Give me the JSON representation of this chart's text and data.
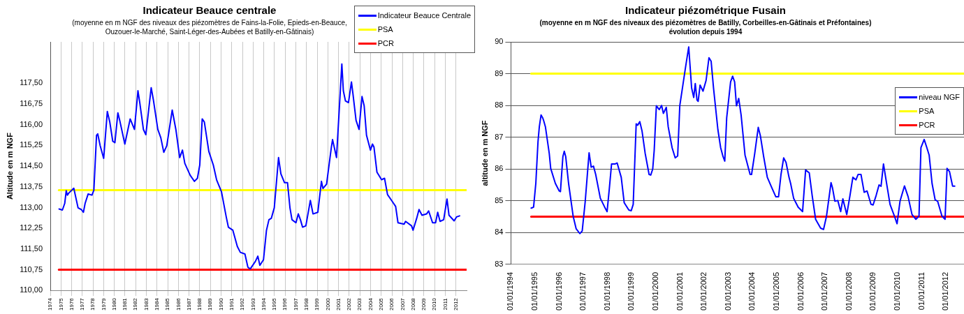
{
  "chart_data": [
    {
      "type": "line",
      "title": "Indicateur Beauce centrale",
      "subtitle": "(moyenne en m NGF des niveaux des piézomètres de Fains-la-Folie, Epieds-en-Beauce,\nOuzouer-le-Marché, Saint-Léger-des-Aubées et Batilly-en-Gâtinais)",
      "ylabel": "Altitude en m NGF",
      "xlim": [
        1974,
        2013
      ],
      "xticks": [
        1974,
        1975,
        1976,
        1977,
        1978,
        1979,
        1980,
        1981,
        1982,
        1983,
        1984,
        1985,
        1986,
        1987,
        1988,
        1989,
        1990,
        1991,
        1992,
        1993,
        1994,
        1995,
        1996,
        1997,
        1998,
        1999,
        2000,
        2001,
        2002,
        2003,
        2004,
        2005,
        2006,
        2007,
        2008,
        2009,
        2010,
        2011,
        2012
      ],
      "ylim": [
        110,
        119
      ],
      "yticks": [
        {
          "value": 110,
          "label": "110,00"
        },
        {
          "value": 110.75,
          "label": "110,75"
        },
        {
          "value": 111.5,
          "label": "111,50"
        },
        {
          "value": 112.25,
          "label": "112,25"
        },
        {
          "value": 113,
          "label": "113,00"
        },
        {
          "value": 113.75,
          "label": "113,75"
        },
        {
          "value": 114.5,
          "label": "114,50"
        },
        {
          "value": 115.25,
          "label": "115,25"
        },
        {
          "value": 116,
          "label": "116,00"
        },
        {
          "value": 116.75,
          "label": "116,75"
        },
        {
          "value": 117.5,
          "label": "117,50"
        }
      ],
      "grid": "x",
      "legend": "top right",
      "series": [
        {
          "name": "Indicateur Beauce Centrale",
          "type": "line",
          "color": "#0000ff",
          "x": [
            1974.82,
            1975.13,
            1975.35,
            1975.49,
            1975.6,
            1975.72,
            1976.2,
            1976.6,
            1976.9,
            1977.1,
            1977.26,
            1977.54,
            1977.9,
            1978.08,
            1978.33,
            1978.44,
            1978.67,
            1979.0,
            1979.34,
            1979.57,
            1979.85,
            1980.05,
            1980.33,
            1980.5,
            1980.98,
            1981.48,
            1981.88,
            1982.21,
            1982.38,
            1982.72,
            1982.95,
            1983.45,
            1983.65,
            1984.07,
            1984.35,
            1984.63,
            1984.91,
            1985.42,
            1985.76,
            1986.12,
            1986.38,
            1986.6,
            1987.1,
            1987.5,
            1987.78,
            1988.0,
            1988.23,
            1988.43,
            1988.85,
            1989.27,
            1989.58,
            1990.03,
            1990.48,
            1990.68,
            1991.1,
            1991.52,
            1991.8,
            1992.23,
            1992.51,
            1992.73,
            1993.21,
            1993.44,
            1993.63,
            1993.97,
            1994.25,
            1994.48,
            1994.7,
            1994.98,
            1995.38,
            1995.6,
            1995.94,
            1996.22,
            1996.45,
            1996.64,
            1997.01,
            1997.23,
            1997.43,
            1997.63,
            1997.94,
            1998.36,
            1998.61,
            1999.06,
            1999.4,
            1999.54,
            1999.88,
            2000.33,
            2000.44,
            2000.81,
            2001.31,
            2001.45,
            2001.65,
            2001.93,
            2002.21,
            2002.35,
            2002.64,
            2002.92,
            2003.2,
            2003.4,
            2003.62,
            2003.99,
            2004.18,
            2004.32,
            2004.6,
            2005.03,
            2005.31,
            2005.59,
            2006.07,
            2006.35,
            2006.57,
            2007.14,
            2007.28,
            2007.84,
            2007.98,
            2008.32,
            2008.54,
            2008.82,
            2009.25,
            2009.44,
            2009.81,
            2010.09,
            2010.29,
            2010.51,
            2010.85,
            2011.16,
            2011.35,
            2011.83,
            2012.05,
            2012.34
          ],
          "values": [
            112.95,
            112.91,
            113.15,
            113.61,
            113.45,
            113.52,
            113.7,
            112.99,
            112.93,
            112.83,
            113.15,
            113.49,
            113.45,
            113.63,
            115.62,
            115.67,
            115.24,
            114.78,
            116.48,
            116.1,
            115.4,
            115.35,
            116.43,
            116.16,
            115.3,
            116.21,
            115.83,
            117.23,
            116.8,
            115.83,
            115.64,
            117.34,
            116.91,
            115.83,
            115.53,
            115.0,
            115.24,
            116.53,
            115.83,
            114.81,
            115.08,
            114.6,
            114.17,
            113.95,
            114.06,
            114.54,
            116.21,
            116.1,
            115.03,
            114.54,
            114.0,
            113.58,
            112.66,
            112.29,
            112.18,
            111.59,
            111.38,
            111.32,
            110.84,
            110.78,
            111.05,
            111.24,
            110.91,
            111.11,
            112.18,
            112.56,
            112.61,
            112.99,
            114.81,
            114.22,
            113.9,
            113.9,
            112.99,
            112.56,
            112.45,
            112.77,
            112.56,
            112.29,
            112.34,
            113.26,
            112.77,
            112.83,
            113.95,
            113.69,
            113.85,
            115.19,
            115.46,
            114.81,
            118.2,
            117.23,
            116.86,
            116.8,
            117.55,
            117.12,
            116.16,
            115.83,
            117.02,
            116.69,
            115.62,
            115.08,
            115.3,
            115.19,
            114.28,
            114.01,
            114.06,
            113.47,
            113.2,
            113.04,
            112.45,
            112.4,
            112.5,
            112.34,
            112.18,
            112.61,
            112.93,
            112.72,
            112.77,
            112.88,
            112.45,
            112.45,
            112.83,
            112.5,
            112.56,
            113.31,
            112.72,
            112.52,
            112.66,
            112.7
          ]
        },
        {
          "name": "PSA",
          "type": "line",
          "color": "#ffff00",
          "x": [
            1974.8,
            2013
          ],
          "values": [
            113.63,
            113.63
          ]
        },
        {
          "name": "PCR",
          "type": "line",
          "color": "#ff0000",
          "x": [
            1974.8,
            2013
          ],
          "values": [
            110.75,
            110.75
          ]
        }
      ]
    },
    {
      "type": "line",
      "title": "Indicateur piézométrique Fusain",
      "subtitle": "(moyenne en m NGF des niveaux des piézomètres de Batilly, Corbeilles-en-Gâtinais et Préfontaines)\névolution depuis 1994",
      "ylabel": "altitude en m NGF",
      "xlim": [
        "1994-01-01",
        "2012-10-01"
      ],
      "xticks": [
        {
          "value": "1994-01-01",
          "label": "01/01/1994"
        },
        {
          "value": "1995-01-01",
          "label": "01/01/1995"
        },
        {
          "value": "1996-01-01",
          "label": "01/01/1996"
        },
        {
          "value": "1997-01-01",
          "label": "01/01/1997"
        },
        {
          "value": "1998-01-01",
          "label": "01/01/1998"
        },
        {
          "value": "1999-01-01",
          "label": "01/01/1999"
        },
        {
          "value": "2000-01-01",
          "label": "01/01/2000"
        },
        {
          "value": "2001-01-01",
          "label": "01/01/2001"
        },
        {
          "value": "2002-01-01",
          "label": "01/01/2002"
        },
        {
          "value": "2003-01-01",
          "label": "01/01/2003"
        },
        {
          "value": "2004-01-01",
          "label": "01/01/2004"
        },
        {
          "value": "2005-01-01",
          "label": "01/01/2005"
        },
        {
          "value": "2006-01-01",
          "label": "01/01/2006"
        },
        {
          "value": "2007-01-01",
          "label": "01/01/2007"
        },
        {
          "value": "2008-01-01",
          "label": "01/01/2008"
        },
        {
          "value": "2009-01-01",
          "label": "01/01/2009"
        },
        {
          "value": "2010-01-01",
          "label": "01/01/2010"
        },
        {
          "value": "2011-01-01",
          "label": "01/01/2011"
        },
        {
          "value": "2012-01-01",
          "label": "01/01/2012"
        }
      ],
      "ylim": [
        83,
        90
      ],
      "yticks": [
        83,
        84,
        85,
        86,
        87,
        88,
        89,
        90
      ],
      "grid": "y",
      "legend": "right",
      "series": [
        {
          "name": "niveau NGF",
          "type": "line",
          "color": "#0000ff",
          "x": [
            "1994-11-03",
            "1994-12-09",
            "1995-01-12",
            "1995-02-14",
            "1995-03-06",
            "1995-04-01",
            "1995-04-26",
            "1995-05-11",
            "1995-06-06",
            "1995-08-03",
            "1995-08-25",
            "1995-11-03",
            "1996-01-01",
            "1996-01-19",
            "1996-02-25",
            "1996-03-17",
            "1996-04-08",
            "1996-05-21",
            "1996-07-29",
            "1996-09-13",
            "1996-11-07",
            "1996-12-13",
            "1997-01-28",
            "1997-03-27",
            "1997-04-28",
            "1997-06-02",
            "1997-07-05",
            "1997-09-13",
            "1997-11-18",
            "1997-12-24",
            "1998-01-26",
            "1998-03-02",
            "1998-04-26",
            "1998-05-25",
            "1998-07-26",
            "1998-09-09",
            "1998-11-18",
            "1998-12-24",
            "1999-01-23",
            "1999-03-09",
            "1999-04-01",
            "1999-05-03",
            "1999-06-06",
            "1999-07-23",
            "1999-09-20",
            "1999-10-15",
            "1999-11-14",
            "1999-12-06",
            "2000-01-08",
            "2000-02-21",
            "2000-03-27",
            "2000-04-23",
            "2000-06-06",
            "2000-07-05",
            "2000-09-02",
            "2000-10-19",
            "2000-11-25",
            "2000-12-27",
            "2001-03-24",
            "2001-05-11",
            "2001-06-24",
            "2001-07-26",
            "2001-08-18",
            "2001-09-13",
            "2001-10-01",
            "2001-10-30",
            "2001-12-13",
            "2002-01-28",
            "2002-03-13",
            "2002-04-15",
            "2002-05-21",
            "2002-07-26",
            "2002-09-06",
            "2002-10-12",
            "2002-11-07",
            "2002-12-06",
            "2003-02-03",
            "2003-03-06",
            "2003-04-05",
            "2003-05-03",
            "2003-06-06",
            "2003-07-12",
            "2003-09-09",
            "2003-11-25",
            "2003-12-17",
            "2004-02-03",
            "2004-03-27",
            "2004-04-28",
            "2004-06-17",
            "2004-08-11",
            "2004-10-08",
            "2004-12-17",
            "2005-01-28",
            "2005-03-06",
            "2005-04-15",
            "2005-05-21",
            "2005-07-05",
            "2005-07-29",
            "2005-09-13",
            "2005-11-21",
            "2006-01-26",
            "2006-03-13",
            "2006-05-07",
            "2006-06-20",
            "2006-08-11",
            "2006-10-26",
            "2006-12-09",
            "2007-01-23",
            "2007-04-01",
            "2007-04-23",
            "2007-05-29",
            "2007-07-12",
            "2007-08-25",
            "2007-09-27",
            "2007-11-25",
            "2008-01-12",
            "2008-02-25",
            "2008-04-12",
            "2008-05-14",
            "2008-06-27",
            "2008-08-14",
            "2008-09-27",
            "2008-11-25",
            "2008-12-27",
            "2009-02-11",
            "2009-03-27",
            "2009-04-26",
            "2009-06-02",
            "2009-07-26",
            "2009-09-09",
            "2009-11-11",
            "2009-12-24",
            "2010-02-07",
            "2010-04-15",
            "2010-06-09",
            "2010-08-07",
            "2010-10-05",
            "2010-11-21",
            "2010-12-20",
            "2011-02-07",
            "2011-03-20",
            "2011-04-23",
            "2011-06-06",
            "2011-07-23",
            "2011-08-29",
            "2011-11-03",
            "2011-12-20",
            "2012-01-19",
            "2012-02-25",
            "2012-04-12",
            "2012-05-14"
          ],
          "values": [
            84.77,
            84.8,
            85.55,
            86.86,
            87.33,
            87.7,
            87.61,
            87.52,
            87.33,
            86.49,
            86.02,
            85.55,
            85.31,
            85.29,
            86.39,
            86.56,
            86.39,
            85.55,
            84.52,
            84.12,
            83.97,
            84.05,
            84.99,
            86.51,
            86.06,
            86.09,
            85.83,
            85.08,
            84.8,
            84.66,
            85.36,
            86.16,
            86.16,
            86.19,
            85.74,
            84.94,
            84.71,
            84.69,
            84.89,
            87.42,
            87.38,
            87.49,
            87.19,
            86.49,
            85.83,
            85.81,
            86.0,
            86.58,
            87.99,
            87.87,
            88.0,
            87.75,
            87.94,
            87.33,
            86.67,
            86.35,
            86.41,
            87.99,
            89.2,
            89.84,
            88.55,
            88.25,
            88.69,
            88.17,
            88.13,
            88.64,
            88.45,
            88.78,
            89.5,
            89.39,
            88.55,
            87.24,
            86.67,
            86.39,
            86.25,
            87.61,
            88.74,
            88.92,
            88.74,
            87.99,
            88.22,
            87.7,
            86.44,
            85.83,
            85.83,
            86.49,
            87.31,
            87.05,
            86.39,
            85.74,
            85.46,
            85.13,
            85.13,
            85.83,
            86.35,
            86.21,
            85.74,
            85.55,
            85.08,
            84.8,
            84.66,
            85.97,
            85.88,
            85.17,
            84.42,
            84.14,
            84.1,
            84.52,
            85.57,
            85.41,
            84.99,
            85.01,
            84.66,
            85.06,
            84.57,
            85.16,
            85.74,
            85.66,
            85.83,
            85.83,
            85.27,
            85.31,
            84.89,
            84.87,
            85.17,
            85.5,
            85.46,
            86.16,
            85.46,
            84.89,
            84.54,
            84.28,
            84.99,
            85.47,
            85.13,
            84.57,
            84.42,
            84.52,
            86.67,
            86.93,
            86.67,
            86.44,
            85.55,
            85.03,
            84.99,
            84.52,
            84.42,
            86.02,
            85.92,
            85.46,
            85.46
          ]
        },
        {
          "name": "PSA",
          "type": "line",
          "color": "#ffff00",
          "x": [
            "1994-11-03",
            "2012-10-01"
          ],
          "values": [
            89,
            89
          ]
        },
        {
          "name": "PCR",
          "type": "line",
          "color": "#ff0000",
          "x": [
            "1994-11-03",
            "2012-10-01"
          ],
          "values": [
            84.5,
            84.5
          ]
        }
      ]
    }
  ]
}
